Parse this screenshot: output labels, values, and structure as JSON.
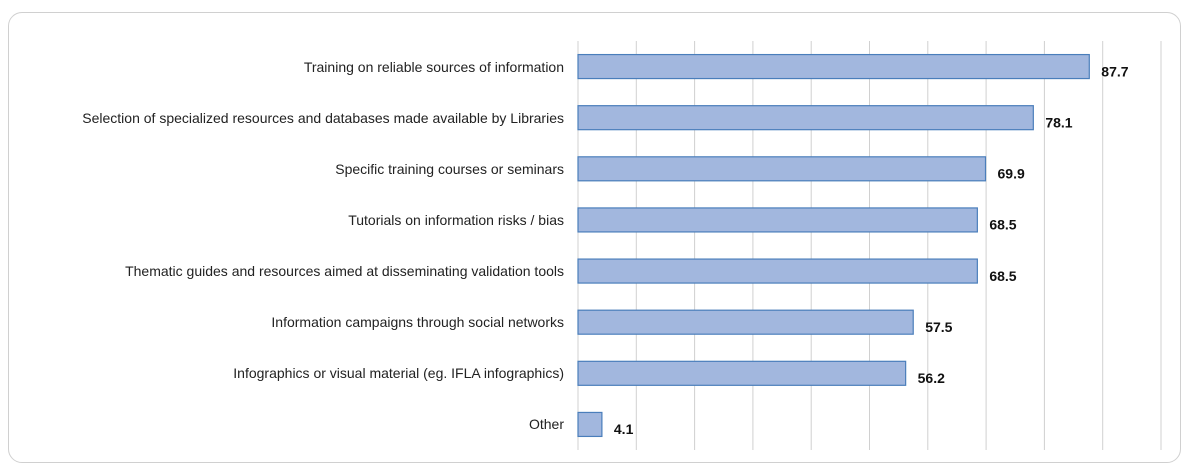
{
  "chart_data": {
    "type": "bar",
    "orientation": "horizontal",
    "categories": [
      "Training on reliable sources of information",
      "Selection of specialized resources and databases made available by Libraries",
      "Specific training courses or seminars",
      "Tutorials on information risks / bias",
      "Thematic guides and resources aimed at disseminating validation tools",
      "Information campaigns through social networks",
      "Infographics or visual material (eg. IFLA infographics)",
      "Other"
    ],
    "values": [
      87.7,
      78.1,
      69.9,
      68.5,
      68.5,
      57.5,
      56.2,
      4.1
    ],
    "color": "#a2b7de",
    "xlim": [
      0,
      100
    ],
    "xticks": [
      0,
      10,
      20,
      30,
      40,
      50,
      60,
      70,
      80,
      90,
      100
    ],
    "grid": true
  }
}
